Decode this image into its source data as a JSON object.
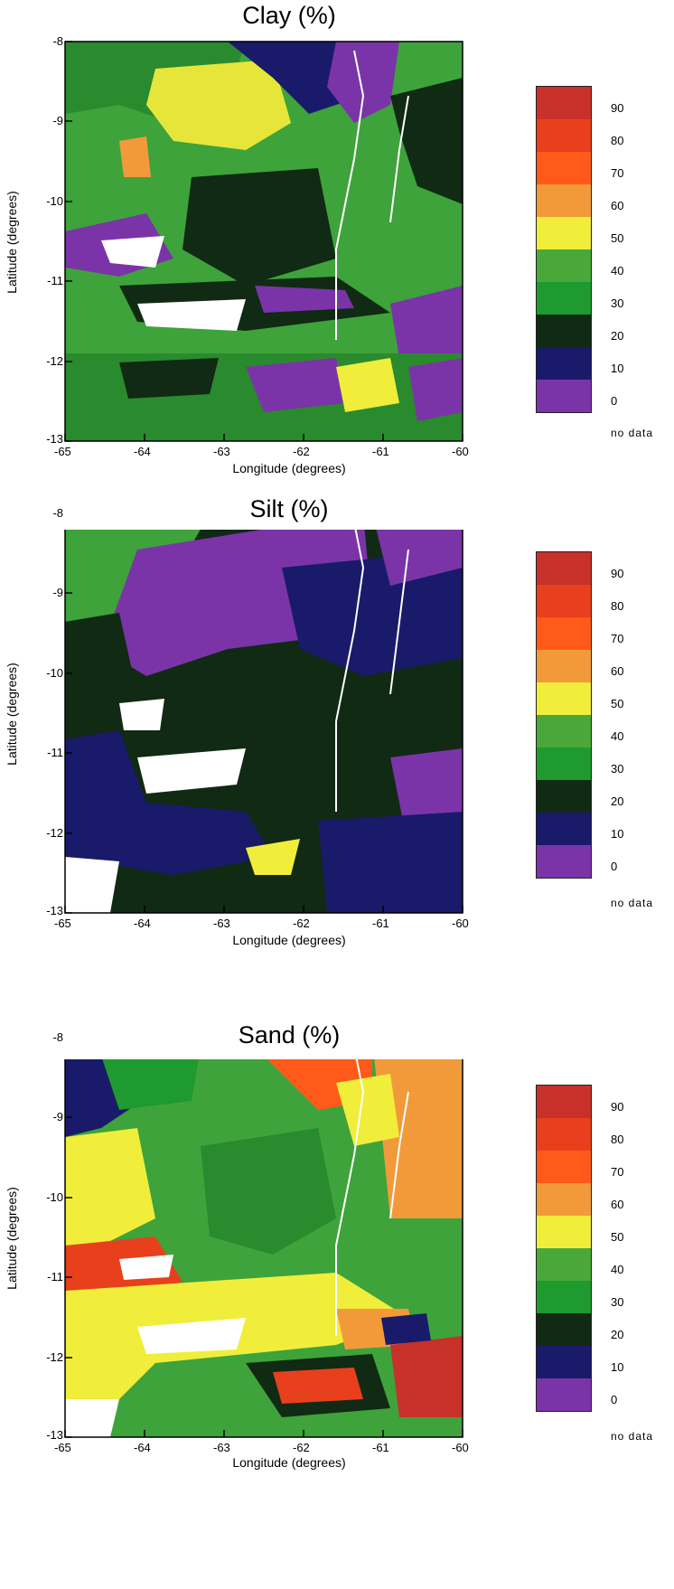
{
  "legend": {
    "labels": [
      "90",
      "80",
      "70",
      "60",
      "50",
      "40",
      "30",
      "20",
      "10",
      "0"
    ],
    "colors": [
      "#c8302a",
      "#e8401c",
      "#ff5a1a",
      "#f29a3a",
      "#f0ee3a",
      "#4aa83a",
      "#1e9a2e",
      "#102a14",
      "#1a1a6a",
      "#7a34a8"
    ],
    "no_data": "no data",
    "no_data_color": "#ffffff"
  },
  "axes": {
    "xlabel": "Longitude (degrees)",
    "ylabel": "Latitude (degrees)",
    "xticks": [
      "-65",
      "-64",
      "-63",
      "-62",
      "-61",
      "-60"
    ],
    "yticks": [
      "-8",
      "-9",
      "-10",
      "-11",
      "-12",
      "-13"
    ],
    "xlim": [
      -65,
      -60
    ],
    "ylim": [
      -13,
      -8
    ]
  },
  "maps": [
    {
      "title": "Clay  (%)"
    },
    {
      "title": "Silt (%)"
    },
    {
      "title": "Sand (%)"
    }
  ]
}
